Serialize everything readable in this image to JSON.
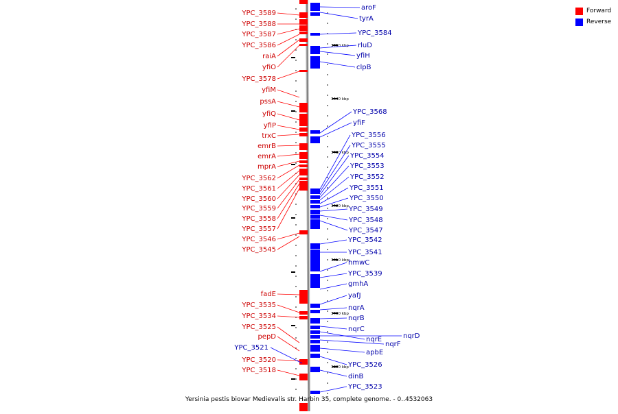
{
  "caption": "Yersinia pestis biovar Medievalis str. Harbin 35, complete genome. - 0..4532063",
  "colors": {
    "forward": "#ff0000",
    "reverse": "#0000ff",
    "forward_text": "#cc0000",
    "reverse_text": "#0000aa",
    "axis": "#999999"
  },
  "legend": [
    {
      "label": "Forward",
      "color": "#ff0000"
    },
    {
      "label": "Reverse",
      "color": "#0000ff"
    }
  ],
  "scale_ticks": [
    "3450 kbp",
    "3440 kbp",
    "3430 kbp",
    "3420 kbp",
    "3410 kbp",
    "3400 kbp",
    "3390 kbp"
  ],
  "forward_genes": [
    "YPC_3589",
    "YPC_3588",
    "YPC_3587",
    "YPC_3586",
    "raiA",
    "yfiO",
    "YPC_3578",
    "yfiM",
    "pssA",
    "yfiQ",
    "yfiP",
    "trxC",
    "emrB",
    "emrA",
    "mprA",
    "YPC_3562",
    "YPC_3561",
    "YPC_3560",
    "YPC_3559",
    "YPC_3558",
    "YPC_3557",
    "YPC_3546",
    "YPC_3545",
    "fadE",
    "YPC_3535",
    "YPC_3534",
    "YPC_3525",
    "pepD",
    "YPC_3520",
    "YPC_3518"
  ],
  "reverse_genes_left": [
    "YPC_3521"
  ],
  "reverse_genes": [
    "aroF",
    "tyrA",
    "YPC_3584",
    "rluD",
    "yfiH",
    "clpB",
    "YPC_3568",
    "yfiF",
    "YPC_3556",
    "YPC_3555",
    "YPC_3554",
    "YPC_3553",
    "YPC_3552",
    "YPC_3551",
    "YPC_3550",
    "YPC_3549",
    "YPC_3548",
    "YPC_3547",
    "YPC_3542",
    "YPC_3541",
    "hmwC",
    "YPC_3539",
    "gmhA",
    "yafJ",
    "nqrA",
    "nqrB",
    "nqrC",
    "nqrE",
    "nqrD",
    "nqrF",
    "apbE",
    "YPC_3526",
    "dinB",
    "YPC_3523"
  ]
}
